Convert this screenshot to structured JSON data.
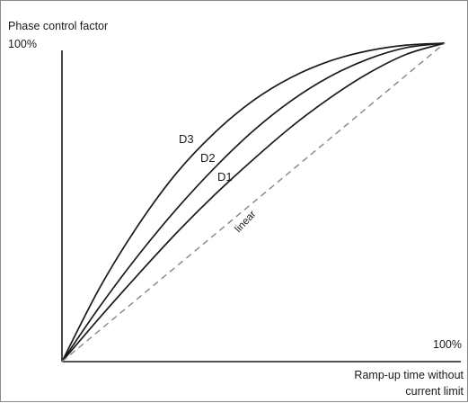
{
  "chart_data": {
    "type": "line",
    "title": "",
    "ylabel": "Phase control factor",
    "xlabel_line1": "Ramp-up time without",
    "xlabel_line2": "current limit",
    "y_max_tick": "100%",
    "x_max_tick": "100%",
    "xlim": [
      0,
      100
    ],
    "ylim": [
      0,
      100
    ],
    "grid": false,
    "legend": "none",
    "series": [
      {
        "name": "D3",
        "style": "solid",
        "color": "#1a1a1a",
        "x": [
          0,
          10,
          20,
          30,
          40,
          50,
          60,
          70,
          80,
          90,
          100
        ],
        "y": [
          0,
          23.5,
          43.0,
          59.3,
          72.0,
          82.0,
          89.3,
          94.4,
          97.6,
          99.4,
          100
        ]
      },
      {
        "name": "D2",
        "style": "solid",
        "color": "#1a1a1a",
        "x": [
          0,
          10,
          20,
          30,
          40,
          50,
          60,
          70,
          80,
          90,
          100
        ],
        "y": [
          0,
          17.5,
          33.5,
          48.0,
          61.0,
          72.5,
          82.0,
          89.5,
          95.0,
          98.6,
          100
        ]
      },
      {
        "name": "D1",
        "style": "solid",
        "color": "#1a1a1a",
        "x": [
          0,
          10,
          20,
          30,
          40,
          50,
          60,
          70,
          80,
          90,
          100
        ],
        "y": [
          0,
          14.0,
          27.5,
          40.5,
          52.5,
          63.5,
          73.8,
          82.8,
          90.5,
          96.5,
          100
        ]
      },
      {
        "name": "linear",
        "style": "dashed",
        "color": "#8c8c8c",
        "x": [
          0,
          100
        ],
        "y": [
          0,
          100
        ]
      }
    ]
  }
}
